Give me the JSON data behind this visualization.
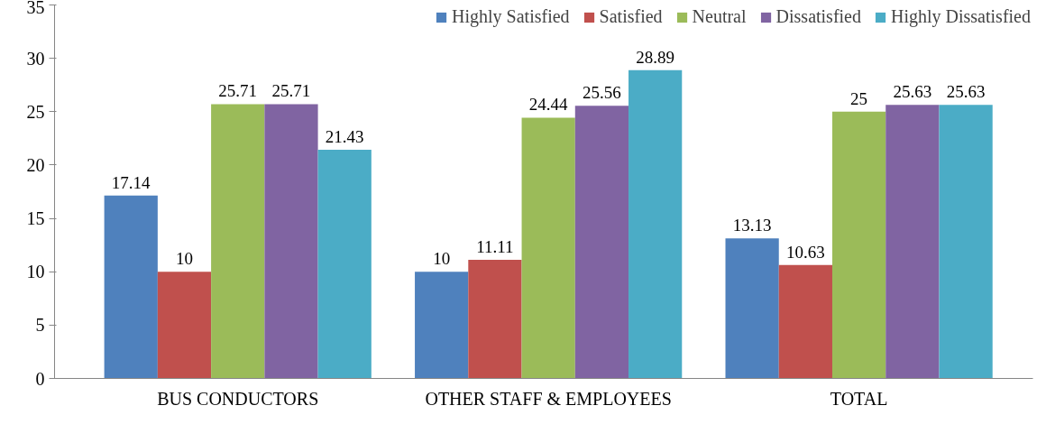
{
  "chart_data": {
    "type": "bar",
    "categories": [
      "BUS CONDUCTORS",
      "OTHER STAFF & EMPLOYEES",
      "TOTAL"
    ],
    "series": [
      {
        "name": "Highly Satisfied",
        "color": "#4f81bd",
        "values": [
          17.14,
          10,
          13.13
        ]
      },
      {
        "name": "Satisfied",
        "color": "#c0504d",
        "values": [
          10,
          11.11,
          10.63
        ]
      },
      {
        "name": "Neutral",
        "color": "#9bbb59",
        "values": [
          25.71,
          24.44,
          25
        ]
      },
      {
        "name": "Dissatisfied",
        "color": "#8064a2",
        "values": [
          25.71,
          25.56,
          25.63
        ]
      },
      {
        "name": "Highly Dissatisfied",
        "color": "#4bacc6",
        "values": [
          21.43,
          28.89,
          25.63
        ]
      }
    ],
    "ylim": [
      0,
      35
    ],
    "yticks": [
      0,
      5,
      10,
      15,
      20,
      25,
      30,
      35
    ],
    "grid": false,
    "legend": "top",
    "data_labels": true
  }
}
